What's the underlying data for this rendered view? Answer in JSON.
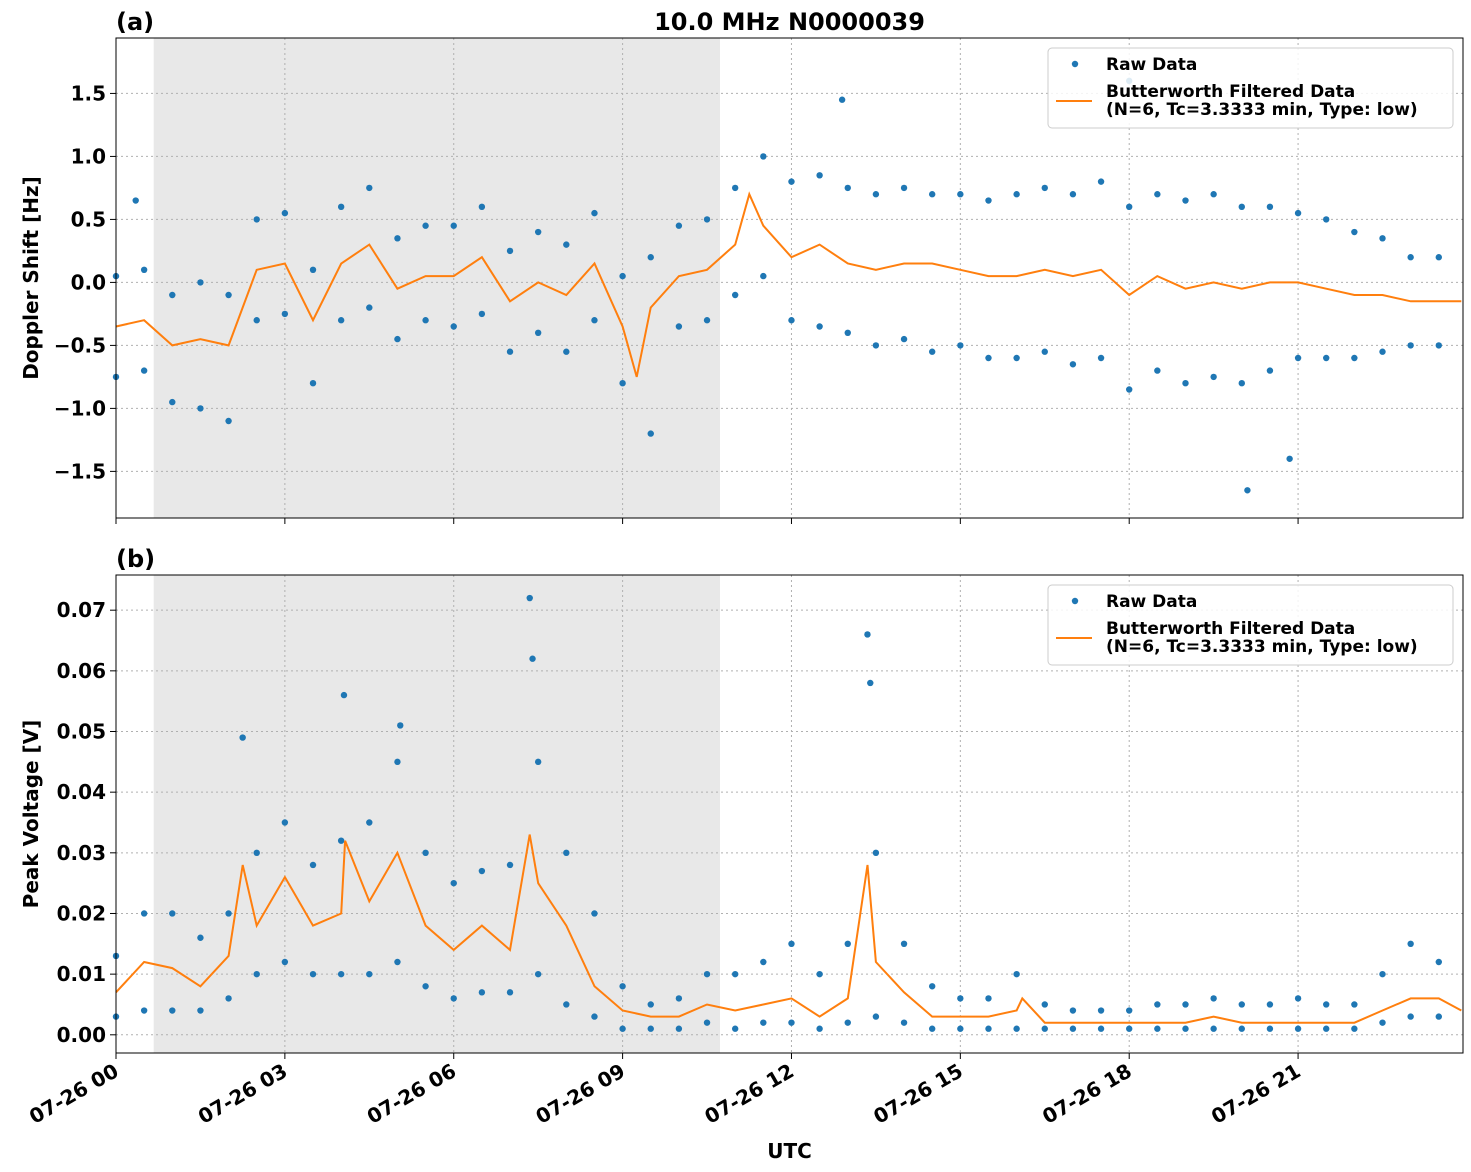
{
  "chart_data": [
    {
      "type": "line",
      "panel_label": "(a)",
      "title": "10.0 MHz N0000039",
      "ylabel": "Doppler Shift [Hz]",
      "xlim": [
        0,
        23.93
      ],
      "ylim": [
        -1.87,
        1.94
      ],
      "shade_xlim": [
        0.67,
        10.73
      ],
      "grid": true,
      "legend": "upper right",
      "xticks": [
        0,
        3,
        6,
        9,
        12,
        15,
        18,
        21
      ],
      "yticks": [
        {
          "value": -1.5,
          "label": "−1.5"
        },
        {
          "value": -1.0,
          "label": "−1.0"
        },
        {
          "value": -0.5,
          "label": "−0.5"
        },
        {
          "value": 0,
          "label": "0.0"
        },
        0.5,
        {
          "value": 1.0,
          "label": "1.0"
        },
        1.5
      ],
      "series": [
        {
          "name": "Raw Data",
          "type": "scatter",
          "color": "#1f77b4",
          "x": [
            0,
            0,
            0.5,
            0.5,
            1,
            1,
            1.5,
            1.5,
            2,
            2,
            2.5,
            2.5,
            3,
            3,
            3.5,
            3.5,
            4,
            4,
            4.5,
            4.5,
            5,
            5,
            5.5,
            5.5,
            6,
            6,
            6.5,
            6.5,
            7,
            7,
            7.5,
            7.5,
            8,
            8,
            8.5,
            8.5,
            9,
            9,
            9.5,
            9.5,
            10,
            10,
            10.5,
            10.5,
            11,
            11,
            11.5,
            11.5,
            12,
            12,
            12.5,
            12.5,
            13,
            13,
            13.5,
            13.5,
            14,
            14,
            14.5,
            14.5,
            15,
            15,
            15.5,
            15.5,
            16,
            16,
            16.5,
            16.5,
            17,
            17,
            17.5,
            17.5,
            18,
            18,
            18.5,
            18.5,
            19,
            19,
            19.5,
            19.5,
            20,
            20,
            20.5,
            20.5,
            21,
            21,
            21.5,
            21.5,
            22,
            22,
            22.5,
            22.5,
            23,
            23,
            23.5,
            23.5,
            12.9,
            18.0,
            20.1,
            20.85,
            0.35
          ],
          "values": [
            0.05,
            -0.75,
            0.1,
            -0.7,
            -0.1,
            -0.95,
            0.0,
            -1.0,
            -0.1,
            -1.1,
            0.5,
            -0.3,
            0.55,
            -0.25,
            0.1,
            -0.8,
            0.6,
            -0.3,
            0.75,
            -0.2,
            0.35,
            -0.45,
            0.45,
            -0.3,
            0.45,
            -0.35,
            0.6,
            -0.25,
            0.25,
            -0.55,
            0.4,
            -0.4,
            0.3,
            -0.55,
            0.55,
            -0.3,
            0.05,
            -0.8,
            0.2,
            -1.2,
            0.45,
            -0.35,
            0.5,
            -0.3,
            0.75,
            -0.1,
            1.0,
            0.05,
            0.8,
            -0.3,
            0.85,
            -0.35,
            0.75,
            -0.4,
            0.7,
            -0.5,
            0.75,
            -0.45,
            0.7,
            -0.55,
            0.7,
            -0.5,
            0.65,
            -0.6,
            0.7,
            -0.6,
            0.75,
            -0.55,
            0.7,
            -0.65,
            0.8,
            -0.6,
            0.6,
            -0.85,
            0.7,
            -0.7,
            0.65,
            -0.8,
            0.7,
            -0.75,
            0.6,
            -0.8,
            0.6,
            -0.7,
            0.55,
            -0.6,
            0.5,
            -0.6,
            0.4,
            -0.6,
            0.35,
            -0.55,
            0.2,
            -0.5,
            0.2,
            -0.5,
            1.45,
            1.6,
            -1.65,
            -1.4,
            0.65
          ]
        },
        {
          "name": "Butterworth Filtered Data\n(N=6, Tc=3.3333 min, Type: low)",
          "type": "line",
          "color": "#ff7f0e",
          "x": [
            0,
            0.5,
            1,
            1.5,
            2,
            2.5,
            3,
            3.5,
            4,
            4.5,
            5,
            5.5,
            6,
            6.5,
            7,
            7.5,
            8,
            8.5,
            9,
            9.25,
            9.5,
            10,
            10.5,
            11,
            11.25,
            11.5,
            12,
            12.5,
            13,
            13.5,
            14,
            14.5,
            15,
            15.5,
            16,
            16.5,
            17,
            17.5,
            18,
            18.5,
            19,
            19.5,
            20,
            20.5,
            21,
            21.5,
            22,
            22.5,
            23,
            23.5,
            23.9
          ],
          "values": [
            -0.35,
            -0.3,
            -0.5,
            -0.45,
            -0.5,
            0.1,
            0.15,
            -0.3,
            0.15,
            0.3,
            -0.05,
            0.05,
            0.05,
            0.2,
            -0.15,
            0.0,
            -0.1,
            0.15,
            -0.35,
            -0.75,
            -0.2,
            0.05,
            0.1,
            0.3,
            0.7,
            0.45,
            0.2,
            0.3,
            0.15,
            0.1,
            0.15,
            0.15,
            0.1,
            0.05,
            0.05,
            0.1,
            0.05,
            0.1,
            -0.1,
            0.05,
            -0.05,
            0.0,
            -0.05,
            0.0,
            0.0,
            -0.05,
            -0.1,
            -0.1,
            -0.15,
            -0.15,
            -0.15
          ]
        }
      ]
    },
    {
      "type": "line",
      "panel_label": "(b)",
      "ylabel": "Peak Voltage [V]",
      "xlabel": "UTC",
      "xlim": [
        0,
        23.93
      ],
      "ylim": [
        -0.003,
        0.0758
      ],
      "shade_xlim": [
        0.67,
        10.73
      ],
      "grid": true,
      "legend": "upper right",
      "xticks": [
        {
          "value": 0,
          "label": "07-26 00"
        },
        {
          "value": 3,
          "label": "07-26 03"
        },
        {
          "value": 6,
          "label": "07-26 06"
        },
        {
          "value": 9,
          "label": "07-26 09"
        },
        {
          "value": 12,
          "label": "07-26 12"
        },
        {
          "value": 15,
          "label": "07-26 15"
        },
        {
          "value": 18,
          "label": "07-26 18"
        },
        {
          "value": 21,
          "label": "07-26 21"
        }
      ],
      "yticks": [
        {
          "value": 0,
          "label": "0.00"
        },
        0.01,
        0.02,
        0.03,
        0.04,
        0.05,
        0.06,
        0.07
      ],
      "series": [
        {
          "name": "Raw Data",
          "type": "scatter",
          "color": "#1f77b4",
          "x": [
            0,
            0,
            0.5,
            0.5,
            1,
            1,
            1.5,
            1.5,
            2,
            2,
            2.5,
            2.5,
            3,
            3,
            3.5,
            3.5,
            4,
            4,
            4.5,
            4.5,
            5,
            5,
            5.5,
            5.5,
            6,
            6,
            6.5,
            6.5,
            7,
            7,
            7.5,
            7.5,
            8,
            8,
            8.5,
            8.5,
            9,
            9,
            9.5,
            9.5,
            10,
            10,
            10.5,
            10.5,
            11,
            11,
            11.5,
            11.5,
            12,
            12,
            12.5,
            12.5,
            13,
            13,
            13.5,
            13.5,
            14,
            14,
            14.5,
            14.5,
            15,
            15,
            15.5,
            15.5,
            16,
            16,
            16.5,
            16.5,
            17,
            17,
            17.5,
            17.5,
            18,
            18,
            18.5,
            18.5,
            19,
            19,
            19.5,
            19.5,
            20,
            20,
            20.5,
            20.5,
            21,
            21,
            21.5,
            21.5,
            22,
            22,
            22.5,
            22.5,
            23,
            23,
            23.5,
            23.5,
            7.35,
            7.4,
            13.35,
            13.4,
            4.05,
            5.05,
            2.25
          ],
          "values": [
            0.013,
            0.003,
            0.02,
            0.004,
            0.02,
            0.004,
            0.016,
            0.004,
            0.02,
            0.006,
            0.03,
            0.01,
            0.035,
            0.012,
            0.028,
            0.01,
            0.032,
            0.01,
            0.035,
            0.01,
            0.045,
            0.012,
            0.03,
            0.008,
            0.025,
            0.006,
            0.027,
            0.007,
            0.028,
            0.007,
            0.045,
            0.01,
            0.03,
            0.005,
            0.02,
            0.003,
            0.008,
            0.001,
            0.005,
            0.001,
            0.006,
            0.001,
            0.01,
            0.002,
            0.01,
            0.001,
            0.012,
            0.002,
            0.015,
            0.002,
            0.01,
            0.001,
            0.015,
            0.002,
            0.03,
            0.003,
            0.015,
            0.002,
            0.008,
            0.001,
            0.006,
            0.001,
            0.006,
            0.001,
            0.01,
            0.001,
            0.005,
            0.001,
            0.004,
            0.001,
            0.004,
            0.001,
            0.004,
            0.001,
            0.005,
            0.001,
            0.005,
            0.001,
            0.006,
            0.001,
            0.005,
            0.001,
            0.005,
            0.001,
            0.006,
            0.001,
            0.005,
            0.001,
            0.005,
            0.001,
            0.01,
            0.002,
            0.015,
            0.003,
            0.012,
            0.003,
            0.072,
            0.062,
            0.066,
            0.058,
            0.056,
            0.051,
            0.049
          ]
        },
        {
          "name": "Butterworth Filtered Data\n(N=6, Tc=3.3333 min, Type: low)",
          "type": "line",
          "color": "#ff7f0e",
          "x": [
            0,
            0.5,
            1,
            1.5,
            2,
            2.25,
            2.5,
            3,
            3.5,
            4,
            4.07,
            4.5,
            5,
            5.5,
            6,
            6.5,
            7,
            7.35,
            7.5,
            8,
            8.5,
            9,
            9.5,
            10,
            10.5,
            11,
            11.5,
            12,
            12.5,
            13,
            13.35,
            13.5,
            14,
            14.5,
            15,
            15.5,
            16,
            16.1,
            16.5,
            17,
            17.5,
            18,
            18.5,
            19,
            19.5,
            20,
            20.5,
            21,
            21.5,
            22,
            22.5,
            23,
            23.5,
            23.9
          ],
          "values": [
            0.007,
            0.012,
            0.011,
            0.008,
            0.013,
            0.028,
            0.018,
            0.026,
            0.018,
            0.02,
            0.032,
            0.022,
            0.03,
            0.018,
            0.014,
            0.018,
            0.014,
            0.033,
            0.025,
            0.018,
            0.008,
            0.004,
            0.003,
            0.003,
            0.005,
            0.004,
            0.005,
            0.006,
            0.003,
            0.006,
            0.028,
            0.012,
            0.007,
            0.003,
            0.003,
            0.003,
            0.004,
            0.006,
            0.002,
            0.002,
            0.002,
            0.002,
            0.002,
            0.002,
            0.003,
            0.002,
            0.002,
            0.002,
            0.002,
            0.002,
            0.004,
            0.006,
            0.006,
            0.004
          ]
        }
      ]
    }
  ]
}
